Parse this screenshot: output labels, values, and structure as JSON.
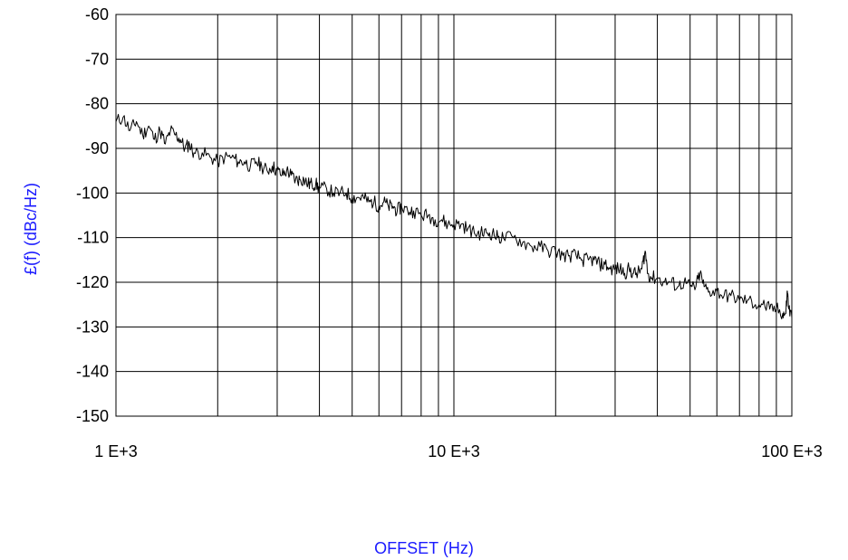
{
  "chart_data": {
    "type": "line",
    "title": "",
    "xlabel": "OFFSET (Hz)",
    "ylabel": "£(f) (dBc/Hz)",
    "x_scale": "log",
    "xlim": [
      1000,
      100000
    ],
    "ylim": [
      -150,
      -60
    ],
    "x_ticks": [
      {
        "value": 1000,
        "label": "1 E+3"
      },
      {
        "value": 10000,
        "label": "10 E+3"
      },
      {
        "value": 100000,
        "label": "100 E+3"
      }
    ],
    "y_ticks": [
      {
        "value": -60,
        "label": "-60"
      },
      {
        "value": -70,
        "label": "-70"
      },
      {
        "value": -80,
        "label": "-80"
      },
      {
        "value": -90,
        "label": "-90"
      },
      {
        "value": -100,
        "label": "-100"
      },
      {
        "value": -110,
        "label": "-110"
      },
      {
        "value": -120,
        "label": "-120"
      },
      {
        "value": -130,
        "label": "-130"
      },
      {
        "value": -140,
        "label": "-140"
      },
      {
        "value": -150,
        "label": "-150"
      }
    ],
    "grid": true,
    "legend": "none",
    "line_color": "#000000",
    "axis_title_color": "#1a1aff",
    "series": [
      {
        "x": [
          1000,
          1050,
          1100,
          1150,
          1200,
          1250,
          1300,
          1350,
          1400,
          1450,
          1500,
          1550,
          1600,
          1650,
          1700,
          1800,
          1900,
          2000,
          2100,
          2200,
          2300,
          2400,
          2500,
          2600,
          2700,
          2800,
          2900,
          3000,
          3100,
          3200,
          3300,
          3400,
          3500,
          3600,
          3700,
          3800,
          3900,
          4000,
          4200,
          4400,
          4600,
          4800,
          5000,
          5200,
          5400,
          5600,
          5800,
          6000,
          6200,
          6400,
          6600,
          6800,
          7000,
          7300,
          7600,
          8000,
          8400,
          8800,
          9200,
          9600,
          10000,
          10500,
          11000,
          11500,
          12000,
          12500,
          13000,
          13500,
          14000,
          15000,
          16000,
          17000,
          18000,
          19000,
          20000,
          21000,
          22000,
          23000,
          24000,
          25000,
          26000,
          27000,
          28000,
          29000,
          30000,
          31000,
          32000,
          33000,
          34000,
          35000,
          36000,
          36800,
          37500,
          38500,
          40000,
          42000,
          44000,
          46000,
          48000,
          50000,
          52000,
          53500,
          55000,
          57000,
          60000,
          63000,
          66000,
          70000,
          74000,
          78000,
          82000,
          86000,
          90000,
          94000,
          96000,
          97000,
          98000,
          100000
        ],
        "y": [
          -84,
          -83,
          -86,
          -84,
          -87,
          -85,
          -88,
          -86,
          -89,
          -86,
          -87,
          -88,
          -90,
          -89,
          -91,
          -91,
          -92,
          -93,
          -92,
          -92,
          -93,
          -93,
          -94,
          -93,
          -94,
          -95,
          -94,
          -95,
          -96,
          -95,
          -96,
          -97,
          -97,
          -97,
          -98,
          -98,
          -98,
          -99,
          -99,
          -100,
          -100,
          -100,
          -101,
          -101,
          -101,
          -102,
          -102,
          -103,
          -102,
          -103,
          -103,
          -104,
          -103,
          -104,
          -104,
          -105,
          -105,
          -106,
          -106,
          -107,
          -107,
          -107,
          -108,
          -109,
          -109,
          -109,
          -109,
          -110,
          -110,
          -110,
          -111,
          -112,
          -112,
          -113,
          -113,
          -114,
          -114,
          -114,
          -115,
          -115,
          -115,
          -116,
          -116,
          -117,
          -117,
          -117,
          -118,
          -117,
          -118,
          -118,
          -117,
          -113,
          -118,
          -119,
          -119,
          -120,
          -120,
          -121,
          -120,
          -121,
          -121,
          -118,
          -121,
          -122,
          -122,
          -123,
          -123,
          -124,
          -124,
          -125,
          -125,
          -126,
          -126,
          -127,
          -127,
          -122,
          -126,
          -128
        ]
      }
    ]
  }
}
